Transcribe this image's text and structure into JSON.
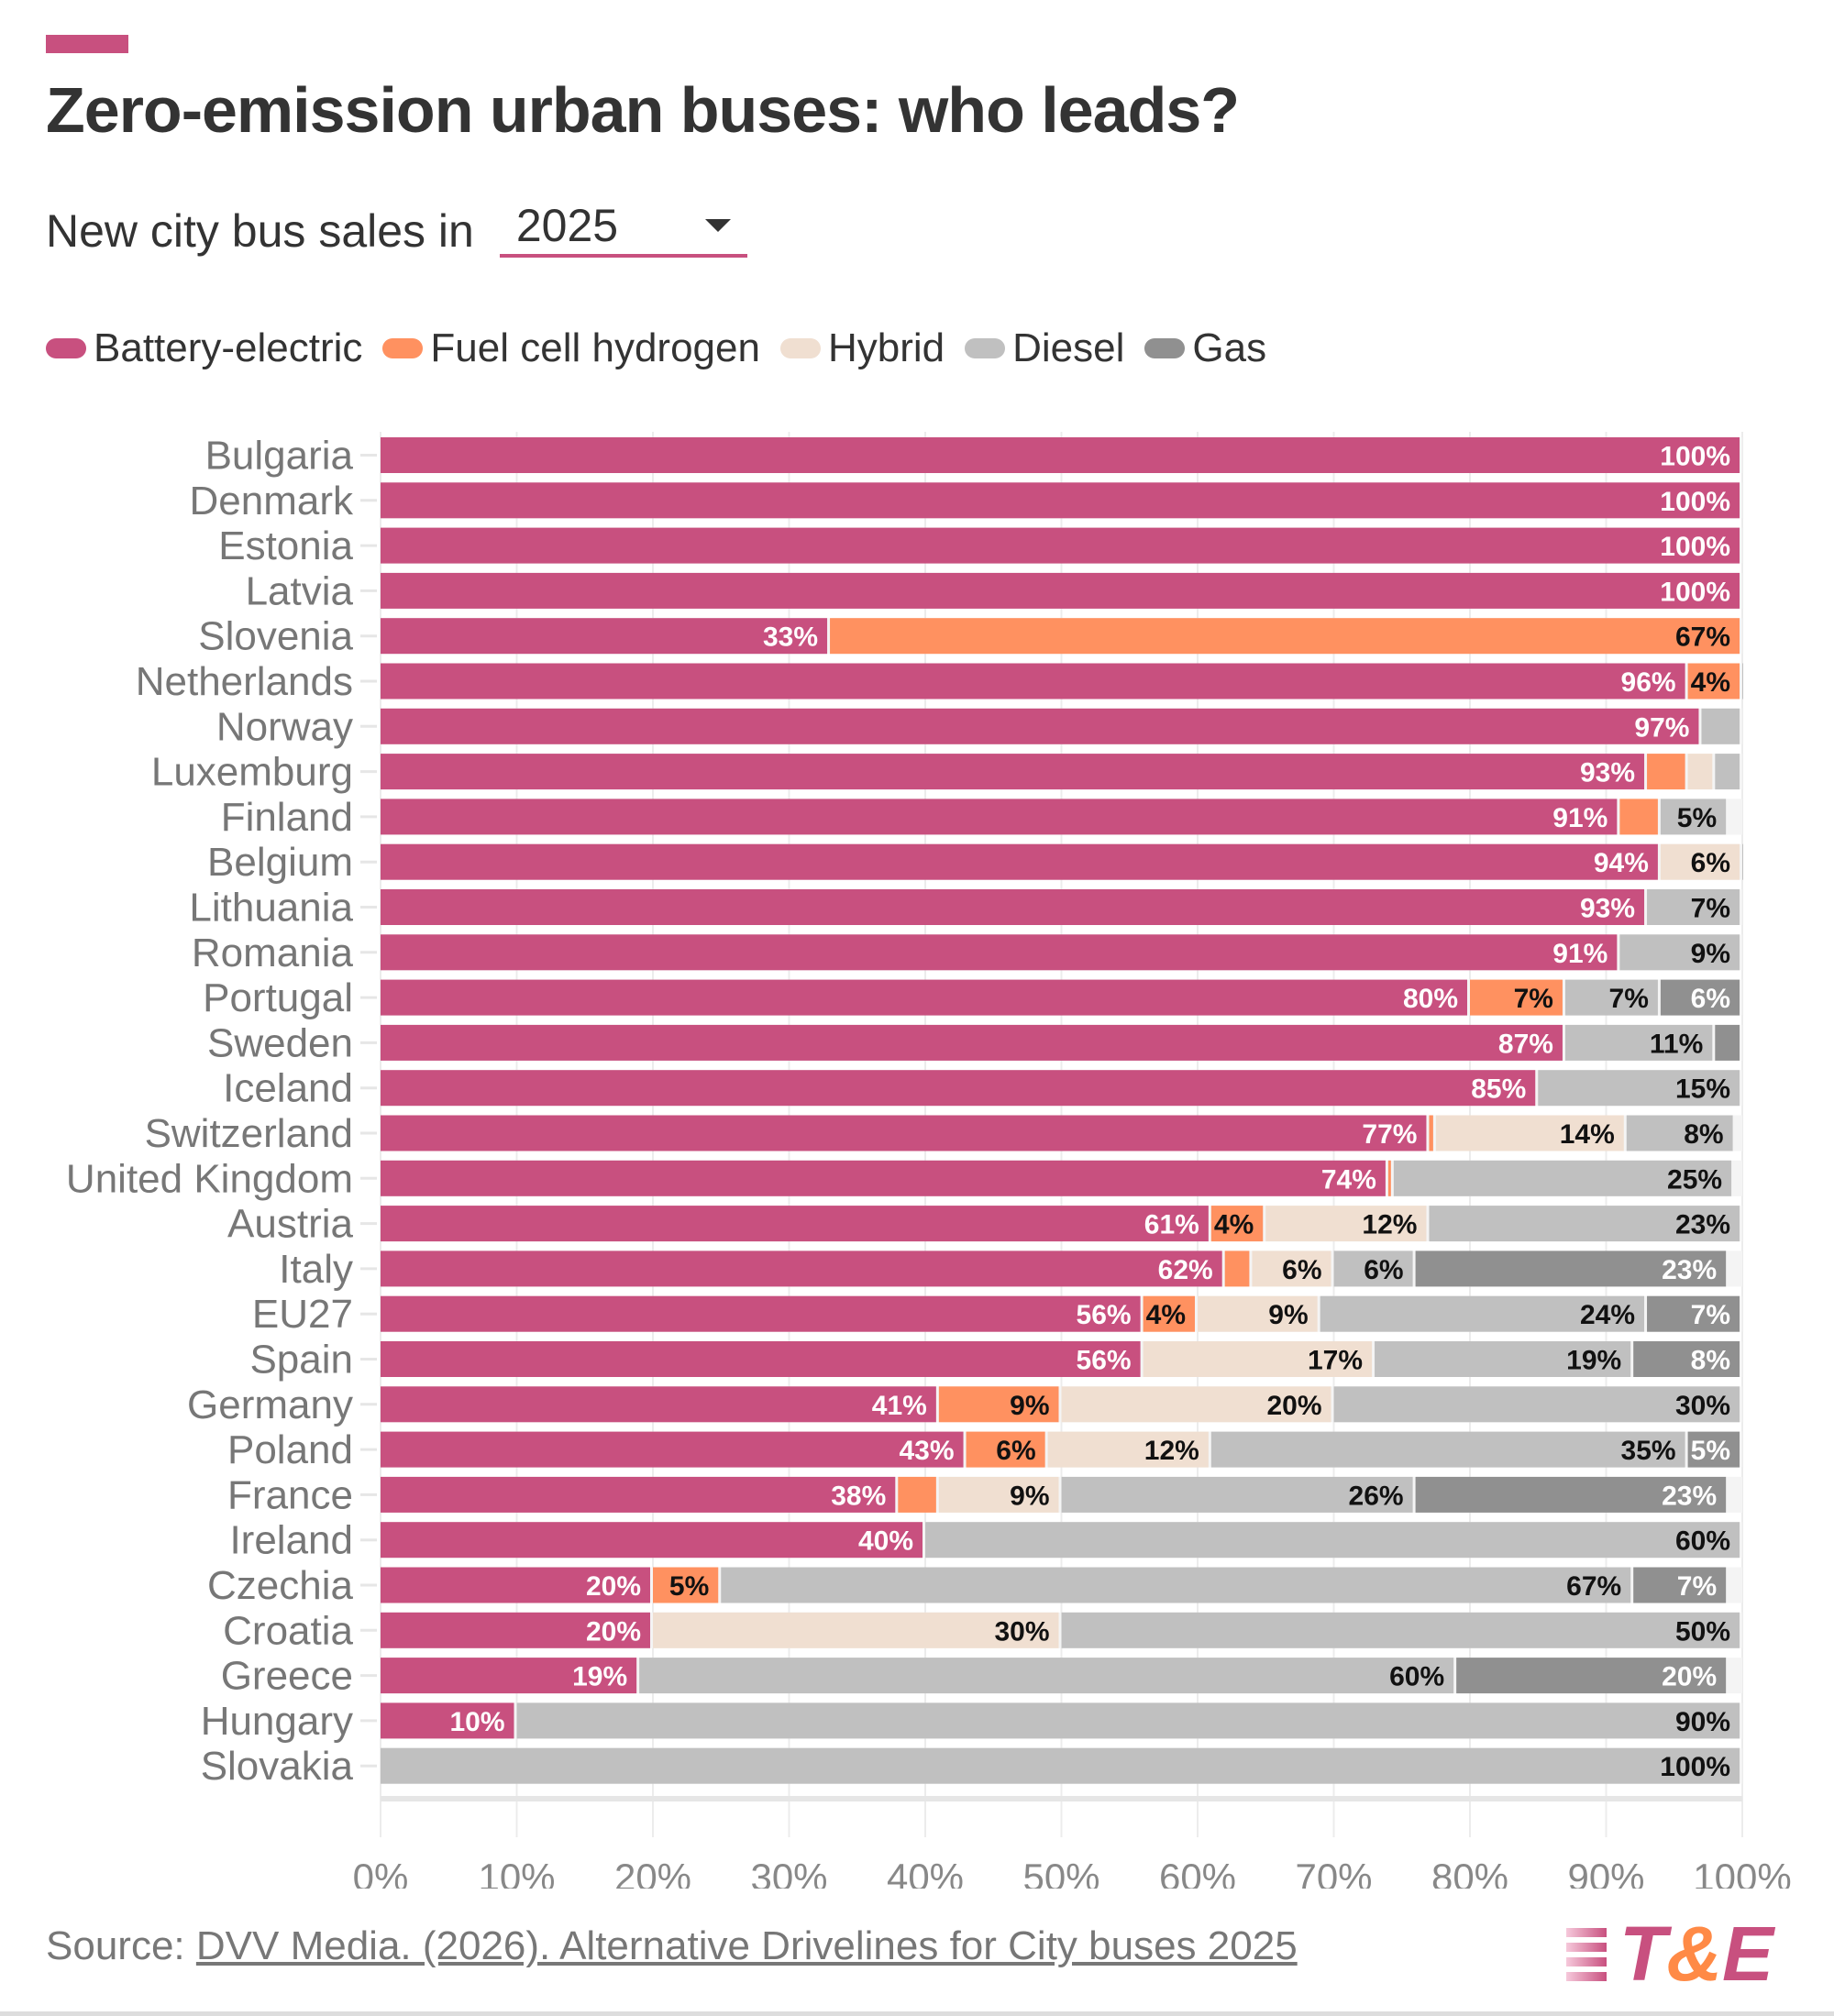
{
  "header": {
    "title": "Zero-emission urban buses: who leads?",
    "subtitle": "New city bus sales in",
    "year_select": {
      "value": "2025"
    }
  },
  "legend": [
    {
      "label": "Battery-electric",
      "color": "#c8507f"
    },
    {
      "label": "Fuel cell hydrogen",
      "color": "#ff9160"
    },
    {
      "label": "Hybrid",
      "color": "#f0dfd1"
    },
    {
      "label": "Diesel",
      "color": "#c0c0c0"
    },
    {
      "label": "Gas",
      "color": "#909090"
    }
  ],
  "footer": {
    "source_prefix": "Source: ",
    "source_link": "DVV Media. (2026). Alternative Drivelines for City buses 2025",
    "logo": "T&E"
  },
  "chart_data": {
    "type": "bar",
    "orientation": "horizontal-stacked",
    "title": "Zero-emission urban buses: who leads?",
    "subtitle": "New city bus sales in 2025",
    "xlabel": "",
    "ylabel": "",
    "xlim": [
      0,
      100
    ],
    "x_ticks": [
      "0%",
      "10%",
      "20%",
      "30%",
      "40%",
      "50%",
      "60%",
      "70%",
      "80%",
      "90%",
      "100%"
    ],
    "grid": true,
    "legend_position": "top-left",
    "categories": [
      "Bulgaria",
      "Denmark",
      "Estonia",
      "Latvia",
      "Slovenia",
      "Netherlands",
      "Norway",
      "Luxemburg",
      "Finland",
      "Belgium",
      "Lithuania",
      "Romania",
      "Portugal",
      "Sweden",
      "Iceland",
      "Switzerland",
      "United Kingdom",
      "Austria",
      "Italy",
      "EU27",
      "Spain",
      "Germany",
      "Poland",
      "France",
      "Ireland",
      "Czechia",
      "Croatia",
      "Greece",
      "Hungary",
      "Slovakia"
    ],
    "series": [
      {
        "name": "Battery-electric",
        "color": "#c8507f",
        "label_color": "#ffffff",
        "values": [
          100,
          100,
          100,
          100,
          33,
          96,
          97,
          93,
          91,
          94,
          93,
          91,
          80,
          87,
          85,
          77,
          74,
          61,
          62,
          56,
          56,
          41,
          43,
          38,
          40,
          20,
          20,
          19,
          10,
          0
        ]
      },
      {
        "name": "Fuel cell hydrogen",
        "color": "#ff9160",
        "label_color": "#111111",
        "values": [
          0,
          0,
          0,
          0,
          67,
          4,
          0,
          3,
          3,
          0,
          0,
          0,
          7,
          0,
          0,
          0.5,
          0.4,
          4,
          2,
          4,
          0,
          9,
          6,
          3,
          0,
          5,
          0,
          0,
          0,
          0
        ]
      },
      {
        "name": "Hybrid",
        "color": "#f0dfd1",
        "label_color": "#111111",
        "values": [
          0,
          0,
          0,
          0,
          0,
          0,
          0,
          2,
          0,
          6,
          0,
          0,
          0,
          0,
          0,
          14,
          0,
          12,
          6,
          9,
          17,
          20,
          12,
          9,
          0,
          0,
          30,
          0,
          0,
          0
        ]
      },
      {
        "name": "Diesel",
        "color": "#c0c0c0",
        "label_color": "#111111",
        "values": [
          0,
          0,
          0,
          0,
          0,
          0.4,
          3,
          2,
          5,
          0.5,
          7,
          9,
          7,
          11,
          15,
          8,
          25,
          23,
          6,
          24,
          19,
          30,
          35,
          26,
          60,
          67,
          50,
          60,
          90,
          100
        ]
      },
      {
        "name": "Gas",
        "color": "#909090",
        "label_color": "#ffffff",
        "values": [
          0,
          0,
          0,
          0,
          0,
          0,
          0,
          0,
          0,
          0,
          0,
          0,
          6,
          2,
          0,
          0,
          0,
          0,
          23,
          7,
          8,
          0,
          5,
          23,
          0,
          7,
          0,
          20,
          0,
          0
        ]
      }
    ],
    "min_label_value": 4
  }
}
